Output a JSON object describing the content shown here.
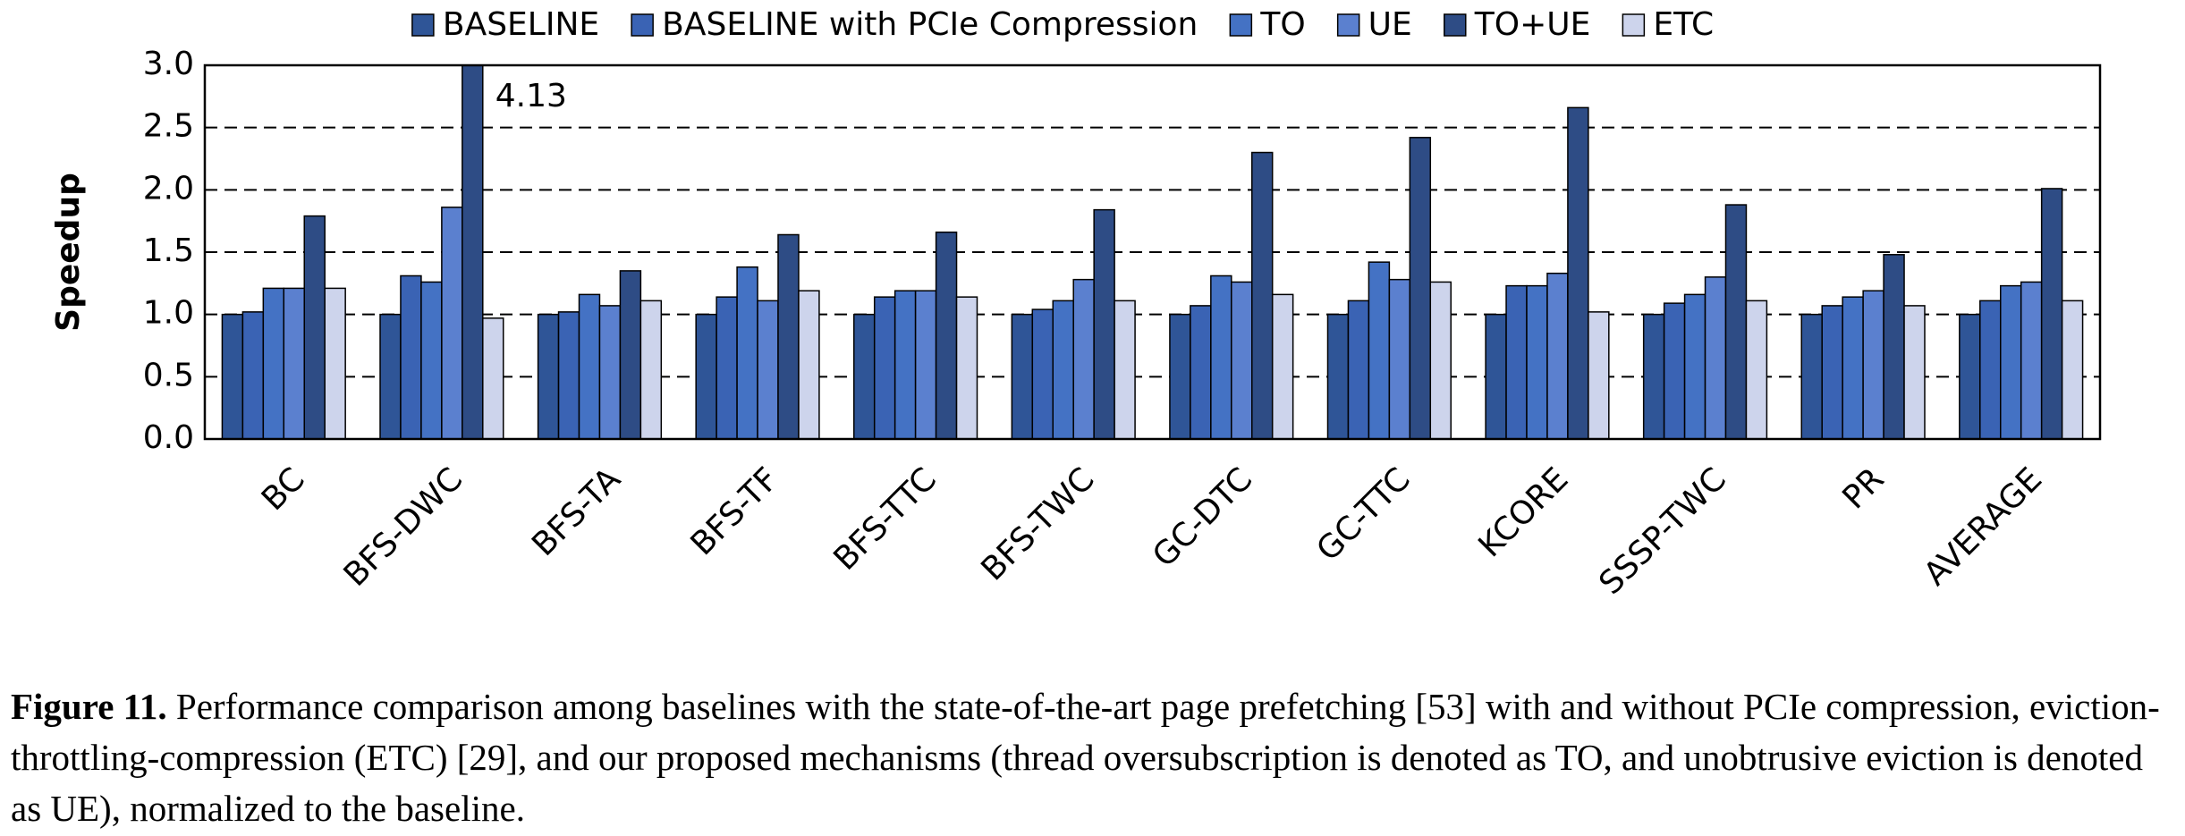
{
  "chart_data": {
    "type": "bar",
    "y_label": "Speedup",
    "categories": [
      "BC",
      "BFS-DWC",
      "BFS-TA",
      "BFS-TF",
      "BFS-TTC",
      "BFS-TWC",
      "GC-DTC",
      "GC-TTC",
      "KCORE",
      "SSSP-TWC",
      "PR",
      "AVERAGE"
    ],
    "series": [
      {
        "name": "BASELINE",
        "color": "#2f5597",
        "values": [
          1.0,
          1.0,
          1.0,
          1.0,
          1.0,
          1.0,
          1.0,
          1.0,
          1.0,
          1.0,
          1.0,
          1.0
        ]
      },
      {
        "name": "BASELINE with PCIe Compression",
        "color": "#3a63b4",
        "values": [
          1.02,
          1.31,
          1.02,
          1.14,
          1.14,
          1.04,
          1.07,
          1.11,
          1.23,
          1.09,
          1.07,
          1.11
        ]
      },
      {
        "name": "TO",
        "color": "#4472c4",
        "values": [
          1.21,
          1.26,
          1.16,
          1.38,
          1.19,
          1.11,
          1.31,
          1.42,
          1.23,
          1.16,
          1.14,
          1.23
        ]
      },
      {
        "name": "UE",
        "color": "#5b80cf",
        "values": [
          1.21,
          1.86,
          1.07,
          1.11,
          1.19,
          1.28,
          1.26,
          1.28,
          1.33,
          1.3,
          1.19,
          1.26
        ]
      },
      {
        "name": "TO+UE",
        "color": "#2e4c85",
        "values": [
          1.79,
          4.13,
          1.35,
          1.64,
          1.66,
          1.84,
          2.3,
          2.42,
          2.66,
          1.88,
          1.48,
          2.01
        ],
        "value_labels": [
          null,
          "4.13",
          null,
          null,
          null,
          null,
          null,
          null,
          null,
          null,
          null,
          null
        ]
      },
      {
        "name": "ETC",
        "color": "#cdd4ec",
        "values": [
          1.21,
          0.97,
          1.11,
          1.19,
          1.14,
          1.11,
          1.16,
          1.26,
          1.02,
          1.11,
          1.07,
          1.11
        ]
      }
    ],
    "ylim": [
      0,
      3
    ],
    "yticks": [
      {
        "value": 0,
        "label": "0.0"
      },
      0.5,
      {
        "value": 1,
        "label": "1.0"
      },
      1.5,
      {
        "value": 2,
        "label": "2.0"
      },
      2.5,
      {
        "value": 3,
        "label": "3.0"
      }
    ],
    "grid": true,
    "legend": "top"
  },
  "caption": {
    "label": "Figure 11.",
    "text": "Performance comparison among baselines with the state-of-the-art page prefetching [53] with and without PCIe compression, eviction-throttling-compression (ETC) [29], and our proposed mechanisms (thread oversubscription is denoted as TO, and unobtrusive eviction is denoted as UE), normalized to the baseline."
  }
}
